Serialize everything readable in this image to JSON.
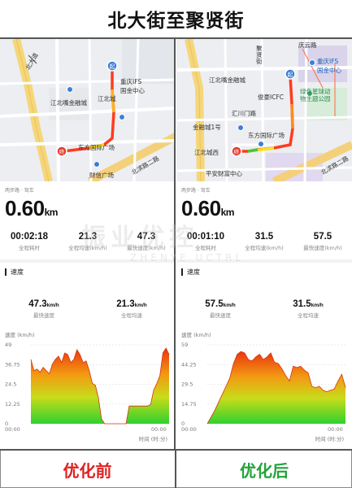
{
  "title": "北大街至聚贤街",
  "panels": {
    "before": {
      "map_labels": {
        "road_top_left": "北大道",
        "airport": "江北嘴金融城",
        "ifs": "重庆IFS\n国金中心",
        "jiangbei": "江北城",
        "dongfang": "东方国际广场",
        "caifu": "财信广场",
        "east_road": "北滨路二路"
      },
      "start_badge": "起",
      "end_badge": "终",
      "mode": "两步路 · 驾车",
      "distance": "0.60",
      "distance_unit": "km",
      "stats": [
        {
          "value": "00:02:18",
          "label": "全程耗时"
        },
        {
          "value": "21.3",
          "label": "全程均速(km/h)"
        },
        {
          "value": "47.3",
          "label": "最快速度(km/h)"
        }
      ],
      "speed_title": "速度",
      "speed_stats": [
        {
          "value": "47.3",
          "unit": "km/h",
          "label": "最快速度"
        },
        {
          "value": "21.3",
          "unit": "km/h",
          "label": "全程均速"
        }
      ],
      "chart_ylabel": "速度 (km/h)",
      "chart_xlabel": "时间 (时:分)"
    },
    "after": {
      "map_labels": {
        "qingyun": "庆云路",
        "jubyuan": "聚\n贤\n街",
        "chongqing_ifs": "重庆IFS\n国金中心",
        "jiangbei_cbd": "江北嘴金融城",
        "junfu": "俊豪ICFC",
        "green_park": "绿色星球动\n物主题公园",
        "huichuan": "汇川门路",
        "jinrong": "金融城1号",
        "dongfang": "东方国际广场",
        "jiangbei_west": "江北城西",
        "pingan": "平安财富中心",
        "east_road": "北滨路二路"
      },
      "start_badge": "起",
      "end_badge": "终",
      "mode": "两步路 · 驾车",
      "distance": "0.60",
      "distance_unit": "km",
      "stats": [
        {
          "value": "00:01:10",
          "label": "全程耗时"
        },
        {
          "value": "31.5",
          "label": "全程均速(km/h)"
        },
        {
          "value": "57.5",
          "label": "最快速度(km/h)"
        }
      ],
      "speed_title": "速度",
      "speed_stats": [
        {
          "value": "57.5",
          "unit": "km/h",
          "label": "最快速度"
        },
        {
          "value": "31.5",
          "unit": "km/h",
          "label": "全程均速"
        }
      ],
      "chart_ylabel": "速度 (km/h)",
      "chart_xlabel": "时间 (时:分)"
    }
  },
  "footer": {
    "before_label": "优化前",
    "after_label": "优化后"
  },
  "watermark": {
    "main": "振业优控",
    "sub": "ZHENYE UCTRL"
  },
  "chart_data": [
    {
      "type": "area",
      "ylabel": "速度 (km/h)",
      "xlabel": "时间 (时:分)",
      "ylim": [
        0,
        49
      ],
      "yticks": [
        "0",
        "12.25",
        "24.5",
        "36.75",
        "49"
      ],
      "xticks": [
        "00:00",
        "00:00"
      ],
      "series": [
        {
          "values": [
            40,
            33,
            34,
            32,
            35,
            33,
            31,
            37,
            40,
            42,
            38,
            44,
            43,
            38,
            40,
            46,
            43,
            38,
            39,
            33,
            25,
            24,
            16,
            3,
            0,
            0,
            0,
            0,
            0,
            0,
            0,
            0,
            11,
            11,
            11,
            11,
            11,
            11,
            11,
            12,
            21,
            25,
            30,
            44,
            47,
            43
          ]
        }
      ],
      "grid": true
    },
    {
      "type": "area",
      "ylabel": "速度 (km/h)",
      "xlabel": "时间 (时:分)",
      "ylim": [
        0,
        59
      ],
      "yticks": [
        "0",
        "14.75",
        "29.5",
        "44.25",
        "59"
      ],
      "xticks": [
        "00:00",
        "00:00"
      ],
      "series": [
        {
          "values": [
            0,
            5,
            10,
            16,
            22,
            28,
            34,
            45,
            52,
            54,
            53,
            48,
            47,
            50,
            52,
            48,
            50,
            53,
            46,
            45,
            41,
            36,
            32,
            43,
            42,
            43,
            40,
            38,
            28,
            27,
            28,
            25,
            24,
            25,
            26,
            32,
            37,
            27
          ]
        }
      ],
      "grid": true
    }
  ]
}
